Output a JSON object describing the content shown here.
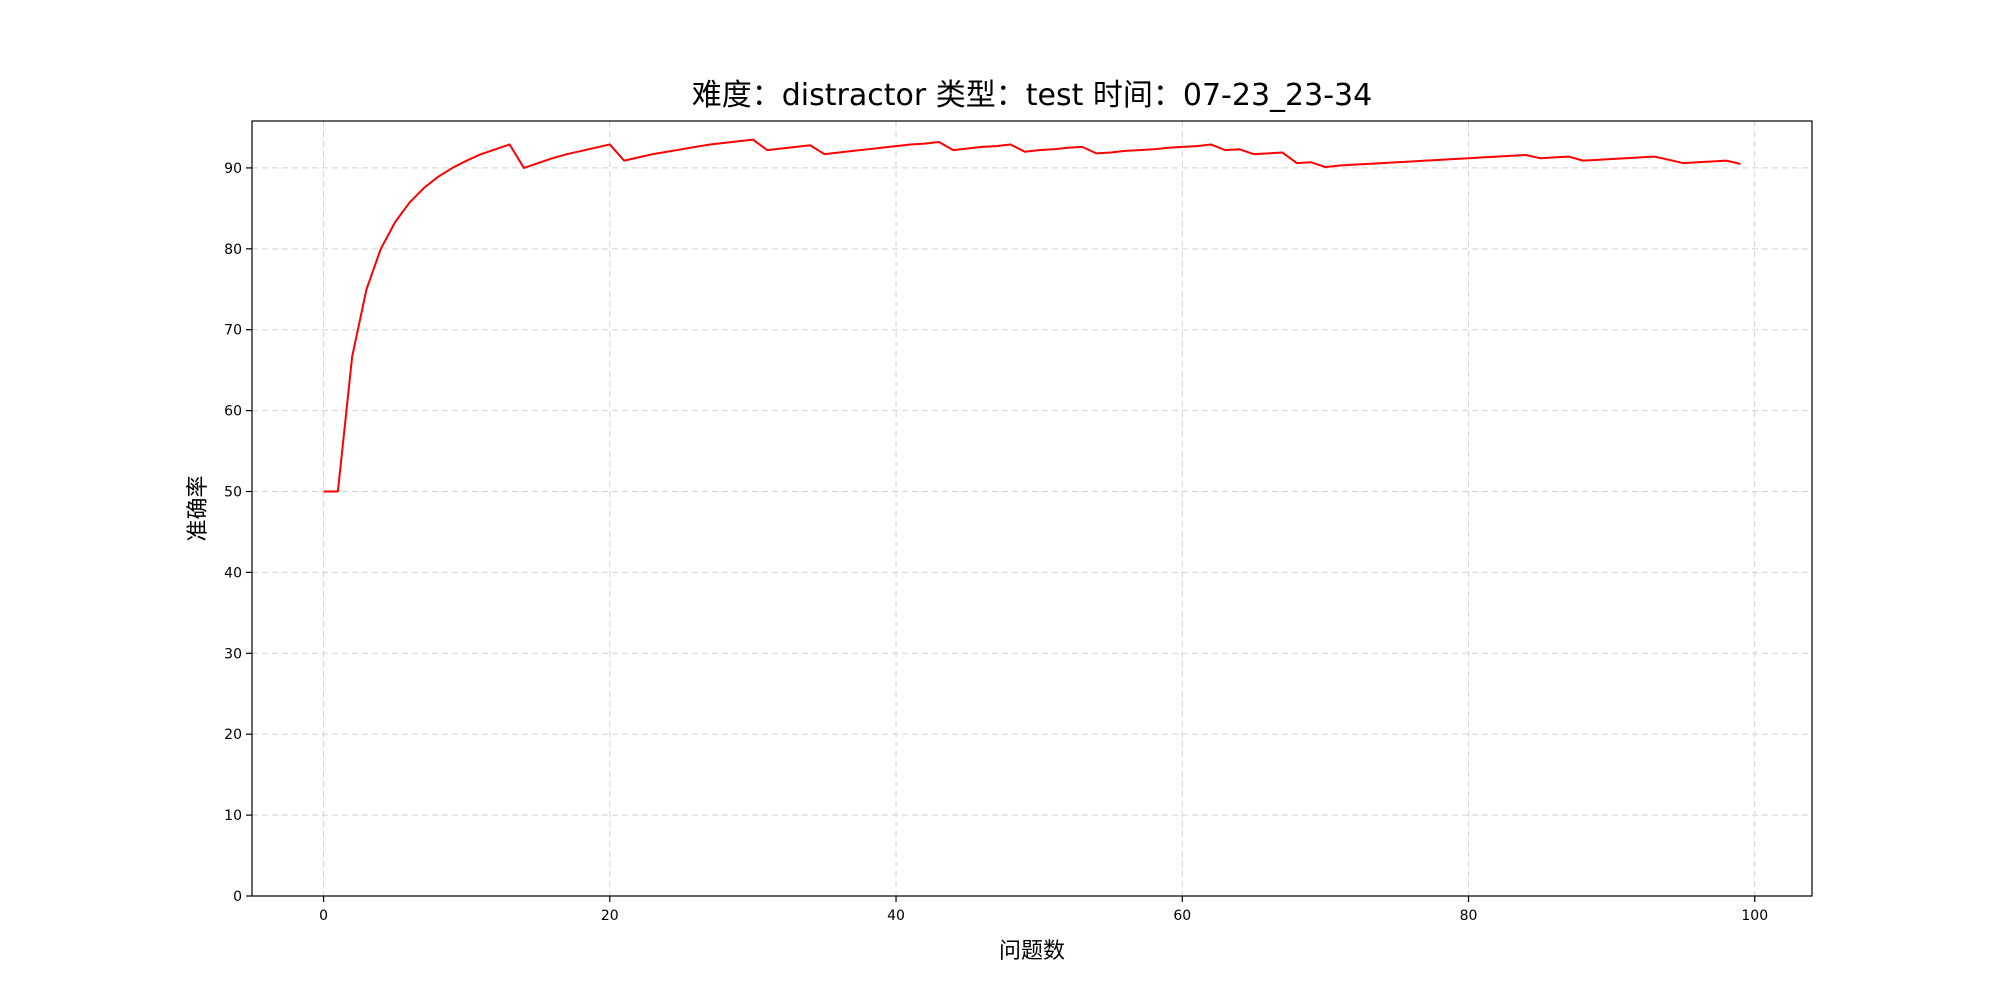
{
  "chart_data": {
    "type": "line",
    "title": "难度：distractor 类型：test 时间：07-23_23-34",
    "xlabel": "问题数",
    "ylabel": "准确率",
    "xlim": [
      -5,
      104
    ],
    "ylim": [
      0,
      95.8
    ],
    "x_ticks": [
      0,
      20,
      40,
      60,
      80,
      100
    ],
    "y_ticks": [
      0,
      10,
      20,
      30,
      40,
      50,
      60,
      70,
      80,
      90
    ],
    "grid": true,
    "line_color": "#ff0000",
    "grid_color": "#d3d3d3",
    "series": [
      {
        "x": [
          0,
          1,
          2,
          3,
          4,
          5,
          6,
          7,
          8,
          9,
          10,
          11,
          12,
          13,
          14,
          15,
          16,
          17,
          18,
          19,
          20,
          21,
          22,
          23,
          24,
          25,
          26,
          27,
          28,
          29,
          30,
          31,
          32,
          33,
          34,
          35,
          36,
          37,
          38,
          39,
          40,
          41,
          42,
          43,
          44,
          45,
          46,
          47,
          48,
          49,
          50,
          51,
          52,
          53,
          54,
          55,
          56,
          57,
          58,
          59,
          60,
          61,
          62,
          63,
          64,
          65,
          66,
          67,
          68,
          69,
          70,
          71,
          72,
          73,
          74,
          75,
          76,
          77,
          78,
          79,
          80,
          81,
          82,
          83,
          84,
          85,
          86,
          87,
          88,
          89,
          90,
          91,
          92,
          93,
          94,
          95,
          96,
          97,
          98,
          99
        ],
        "values": [
          50.0,
          50.0,
          66.7,
          75.0,
          80.0,
          83.3,
          85.7,
          87.5,
          88.9,
          90.0,
          90.9,
          91.7,
          92.3,
          92.9,
          90.0,
          90.6,
          91.2,
          91.7,
          92.1,
          92.5,
          92.9,
          90.9,
          91.3,
          91.7,
          92.0,
          92.3,
          92.6,
          92.9,
          93.1,
          93.3,
          93.5,
          92.2,
          92.4,
          92.6,
          92.8,
          91.7,
          91.9,
          92.1,
          92.3,
          92.5,
          92.7,
          92.9,
          93.0,
          93.2,
          92.2,
          92.4,
          92.6,
          92.7,
          92.9,
          92.0,
          92.2,
          92.3,
          92.5,
          92.6,
          91.8,
          91.9,
          92.1,
          92.2,
          92.3,
          92.5,
          92.6,
          92.7,
          92.9,
          92.2,
          92.3,
          91.7,
          91.8,
          91.9,
          90.6,
          90.7,
          90.1,
          90.3,
          90.4,
          90.5,
          90.6,
          90.7,
          90.8,
          90.9,
          91.0,
          91.1,
          91.2,
          91.3,
          91.4,
          91.5,
          91.6,
          91.2,
          91.3,
          91.4,
          90.9,
          91.0,
          91.1,
          91.2,
          91.3,
          91.4,
          91.0,
          90.6,
          90.7,
          90.8,
          90.9,
          90.5
        ]
      }
    ]
  }
}
